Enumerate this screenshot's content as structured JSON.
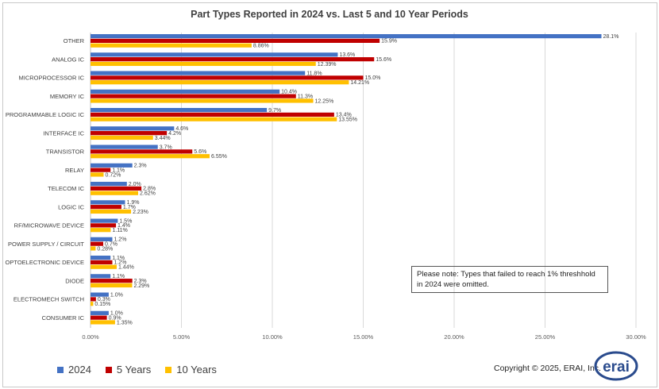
{
  "chart_data": {
    "type": "bar",
    "orientation": "horizontal",
    "title": "Part Types Reported in 2024 vs. Last 5 and 10 Year Periods",
    "categories": [
      "OTHER",
      "ANALOG IC",
      "MICROPROCESSOR IC",
      "MEMORY IC",
      "PROGRAMMABLE LOGIC IC",
      "INTERFACE IC",
      "TRANSISTOR",
      "RELAY",
      "TELECOM IC",
      "LOGIC IC",
      "RF/MICROWAVE DEVICE",
      "POWER SUPPLY / CIRCUIT",
      "OPTOELECTRONIC DEVICE",
      "DIODE",
      "ELECTROMECH SWITCH",
      "CONSUMER IC"
    ],
    "series": [
      {
        "name": "2024",
        "color": "#4472c4",
        "values": [
          28.1,
          13.6,
          11.8,
          10.4,
          9.7,
          4.6,
          3.7,
          2.3,
          2.0,
          1.9,
          1.5,
          1.2,
          1.1,
          1.1,
          1.0,
          1.0
        ],
        "labels": [
          "28.1%",
          "13.6%",
          "11.8%",
          "10.4%",
          "9.7%",
          "4.6%",
          "3.7%",
          "2.3%",
          "2.0%",
          "1.9%",
          "1.5%",
          "1.2%",
          "1.1%",
          "1.1%",
          "1.0%",
          "1.0%"
        ]
      },
      {
        "name": "5 Years",
        "color": "#c00000",
        "values": [
          15.9,
          15.6,
          15.0,
          11.3,
          13.4,
          4.2,
          5.6,
          1.1,
          2.8,
          1.7,
          1.4,
          0.7,
          1.2,
          2.3,
          0.3,
          0.9
        ],
        "labels": [
          "15.9%",
          "15.6%",
          "15.0%",
          "11.3%",
          "13.4%",
          "4.2%",
          "5.6%",
          "1.1%",
          "2.8%",
          "1.7%",
          "1.4%",
          "0.7%",
          "1.2%",
          "2.3%",
          "0.3%",
          "0.9%"
        ]
      },
      {
        "name": "10 Years",
        "color": "#ffc000",
        "values": [
          8.86,
          12.39,
          14.21,
          12.25,
          13.55,
          3.44,
          6.55,
          0.72,
          2.62,
          2.23,
          1.11,
          0.28,
          1.44,
          2.29,
          0.15,
          1.35
        ],
        "labels": [
          "8.86%",
          "12.39%",
          "14.21%",
          "12.25%",
          "13.55%",
          "3.44%",
          "6.55%",
          "0.72%",
          "2.62%",
          "2.23%",
          "1.11%",
          "0.28%",
          "1.44%",
          "2.29%",
          "0.15%",
          "1.35%"
        ]
      }
    ],
    "xlim": [
      0,
      30
    ],
    "xticks": [
      0,
      5,
      10,
      15,
      20,
      25,
      30
    ],
    "xtick_labels": [
      "0.00%",
      "5.00%",
      "10.00%",
      "15.00%",
      "20.00%",
      "25.00%",
      "30.00%"
    ],
    "grid": true,
    "legend": "bottom-left"
  },
  "note": {
    "line1": "Please note: Types that failed to reach 1% threshhold",
    "line2": "in 2024  were omitted."
  },
  "copyright": "Copyright © 2025, ERAI, Inc.",
  "logo_text": "erai",
  "colors": {
    "blue": "#4472c4",
    "red": "#c00000",
    "gold": "#ffc000",
    "logo": "#2a4b8d"
  }
}
